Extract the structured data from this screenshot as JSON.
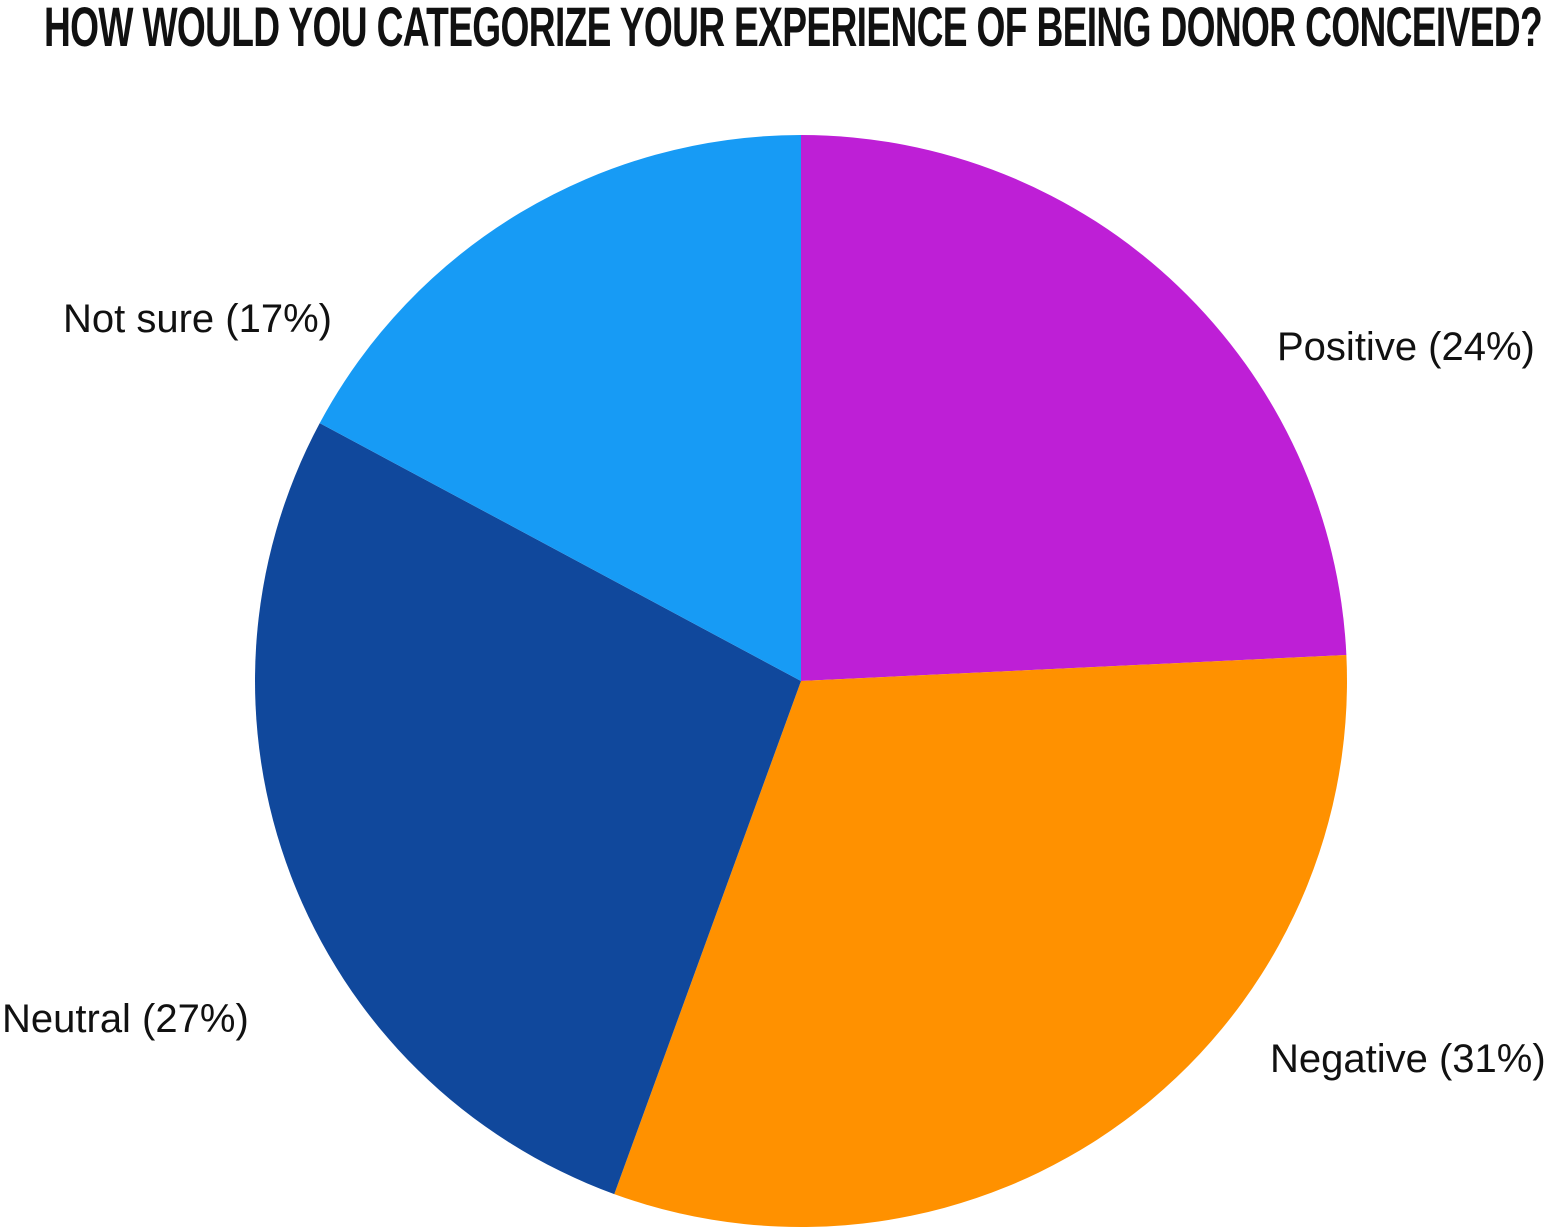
{
  "title": "HOW WOULD YOU CATEGORIZE YOUR EXPERIENCE OF BEING DONOR CONCEIVED?",
  "chart_data": {
    "type": "pie",
    "title": "HOW WOULD YOU CATEGORIZE YOUR EXPERIENCE OF BEING DONOR CONCEIVED?",
    "categories": [
      "Positive",
      "Negative",
      "Neutral",
      "Not sure"
    ],
    "values": [
      24,
      31,
      27,
      17
    ],
    "unit": "%",
    "colors": [
      "#BE1FD6",
      "#FF9100",
      "#10489C",
      "#179BF5"
    ],
    "labels": [
      "Positive (24%)",
      "Negative (31%)",
      "Neutral (27%)",
      "Not sure (17%)"
    ],
    "start_angle_deg": 0,
    "direction": "clockwise",
    "legend_position": "none",
    "label_style": "outside-callout-free"
  }
}
